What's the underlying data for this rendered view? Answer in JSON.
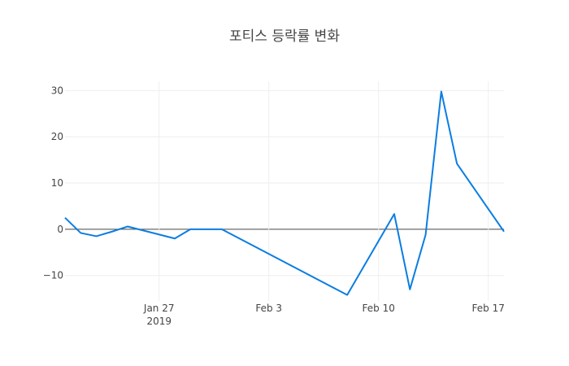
{
  "chart_data": {
    "type": "line",
    "title": "포티스 등락률 변화",
    "xlabel": "",
    "ylabel": "",
    "xlim": [
      "2019-01-21",
      "2019-02-18"
    ],
    "ylim": [
      -15.5,
      32
    ],
    "grid": true,
    "legend": "none",
    "x_ticks": [
      {
        "date": "2019-01-27",
        "label": "Jan 27",
        "sublabel": "2019"
      },
      {
        "date": "2019-02-03",
        "label": "Feb 3",
        "sublabel": ""
      },
      {
        "date": "2019-02-10",
        "label": "Feb 10",
        "sublabel": ""
      },
      {
        "date": "2019-02-17",
        "label": "Feb 17",
        "sublabel": ""
      }
    ],
    "y_ticks": [
      -10,
      0,
      10,
      20,
      30
    ],
    "series": [
      {
        "color": "#0a7de2",
        "x": [
          "2019-01-21",
          "2019-01-22",
          "2019-01-23",
          "2019-01-24",
          "2019-01-25",
          "2019-01-28",
          "2019-01-29",
          "2019-01-30",
          "2019-01-31",
          "2019-02-08",
          "2019-02-11",
          "2019-02-12",
          "2019-02-13",
          "2019-02-14",
          "2019-02-15",
          "2019-02-18"
        ],
        "y": [
          2.5,
          -0.8,
          -1.5,
          -0.5,
          0.6,
          -2.0,
          0.0,
          0.0,
          0.0,
          -14.2,
          3.3,
          -13.0,
          -1.2,
          29.8,
          14.2,
          -0.5
        ]
      }
    ]
  }
}
